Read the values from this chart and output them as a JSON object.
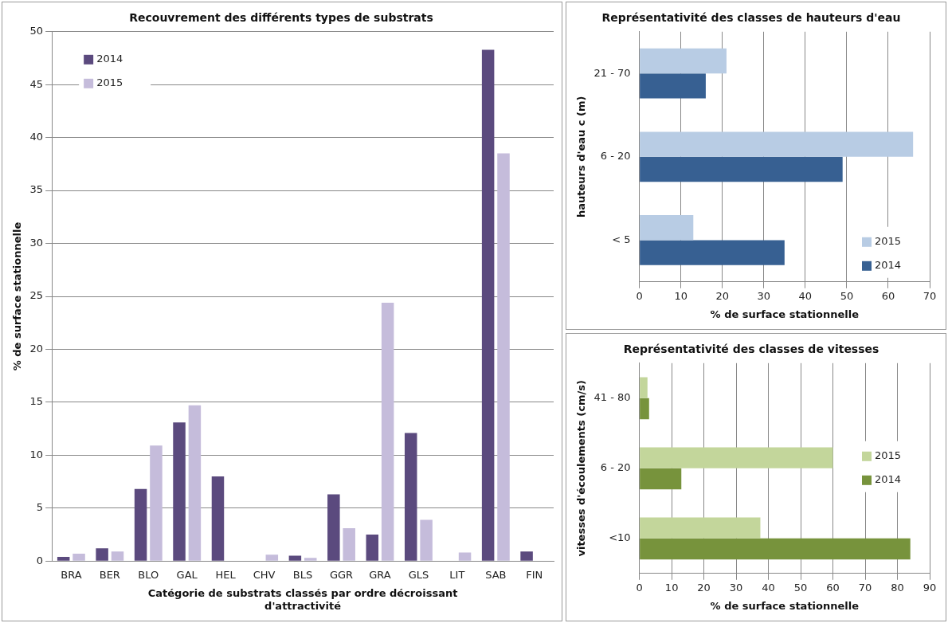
{
  "chart_data": [
    {
      "type": "bar",
      "title": "Recouvrement des différents types de substrats",
      "xlabel": "Catégorie de substrats classés par ordre décroissant d'attractivité",
      "ylabel": "% de surface stationnelle",
      "categories": [
        "BRA",
        "BER",
        "BLO",
        "GAL",
        "HEL",
        "CHV",
        "BLS",
        "GGR",
        "GRA",
        "GLS",
        "LIT",
        "SAB",
        "FIN"
      ],
      "series": [
        {
          "name": "2014",
          "color": "#5b4a7e",
          "values": [
            0.4,
            1.2,
            6.8,
            13.1,
            8.0,
            0,
            0.5,
            6.3,
            2.5,
            12.1,
            0,
            48.3,
            0.9
          ]
        },
        {
          "name": "2015",
          "color": "#c5bcdb",
          "values": [
            0.7,
            0.9,
            10.9,
            14.7,
            0,
            0.6,
            0.3,
            3.1,
            24.4,
            3.9,
            0.8,
            38.5,
            0
          ]
        }
      ],
      "ylim": [
        0,
        50
      ],
      "yticks": [
        0,
        5,
        10,
        15,
        20,
        25,
        30,
        35,
        40,
        45,
        50
      ],
      "grid": "y",
      "legend": "top left"
    },
    {
      "type": "bar",
      "orientation": "horizontal",
      "title": "Représentativité des classes de hauteurs d'eau",
      "xlabel": "% de surface stationnelle",
      "ylabel": "hauteurs d'eau c (m)",
      "categories": [
        "21 - 70",
        "6 - 20",
        "< 5"
      ],
      "series": [
        {
          "name": "2015",
          "color": "#b8cce4",
          "values": [
            21,
            66,
            13
          ]
        },
        {
          "name": "2014",
          "color": "#376092",
          "values": [
            16,
            49,
            35
          ]
        }
      ],
      "xlim": [
        0,
        70
      ],
      "xticks": [
        0,
        10,
        20,
        30,
        40,
        50,
        60,
        70
      ],
      "grid": "x",
      "legend": "bottom right"
    },
    {
      "type": "bar",
      "orientation": "horizontal",
      "title": "Représentativité des classes de vitesses",
      "xlabel": "% de surface stationnelle",
      "ylabel": "vitesses d'écoulements (cm/s)",
      "categories": [
        "41 - 80",
        "6 - 20",
        "<10"
      ],
      "series": [
        {
          "name": "2015",
          "color": "#c3d69b",
          "values": [
            2.5,
            60,
            37.5
          ]
        },
        {
          "name": "2014",
          "color": "#77933c",
          "values": [
            3,
            13,
            84
          ]
        }
      ],
      "xlim": [
        0,
        90
      ],
      "xticks": [
        0,
        10,
        20,
        30,
        40,
        50,
        60,
        70,
        80,
        90
      ],
      "grid": "x",
      "legend": "right"
    }
  ]
}
